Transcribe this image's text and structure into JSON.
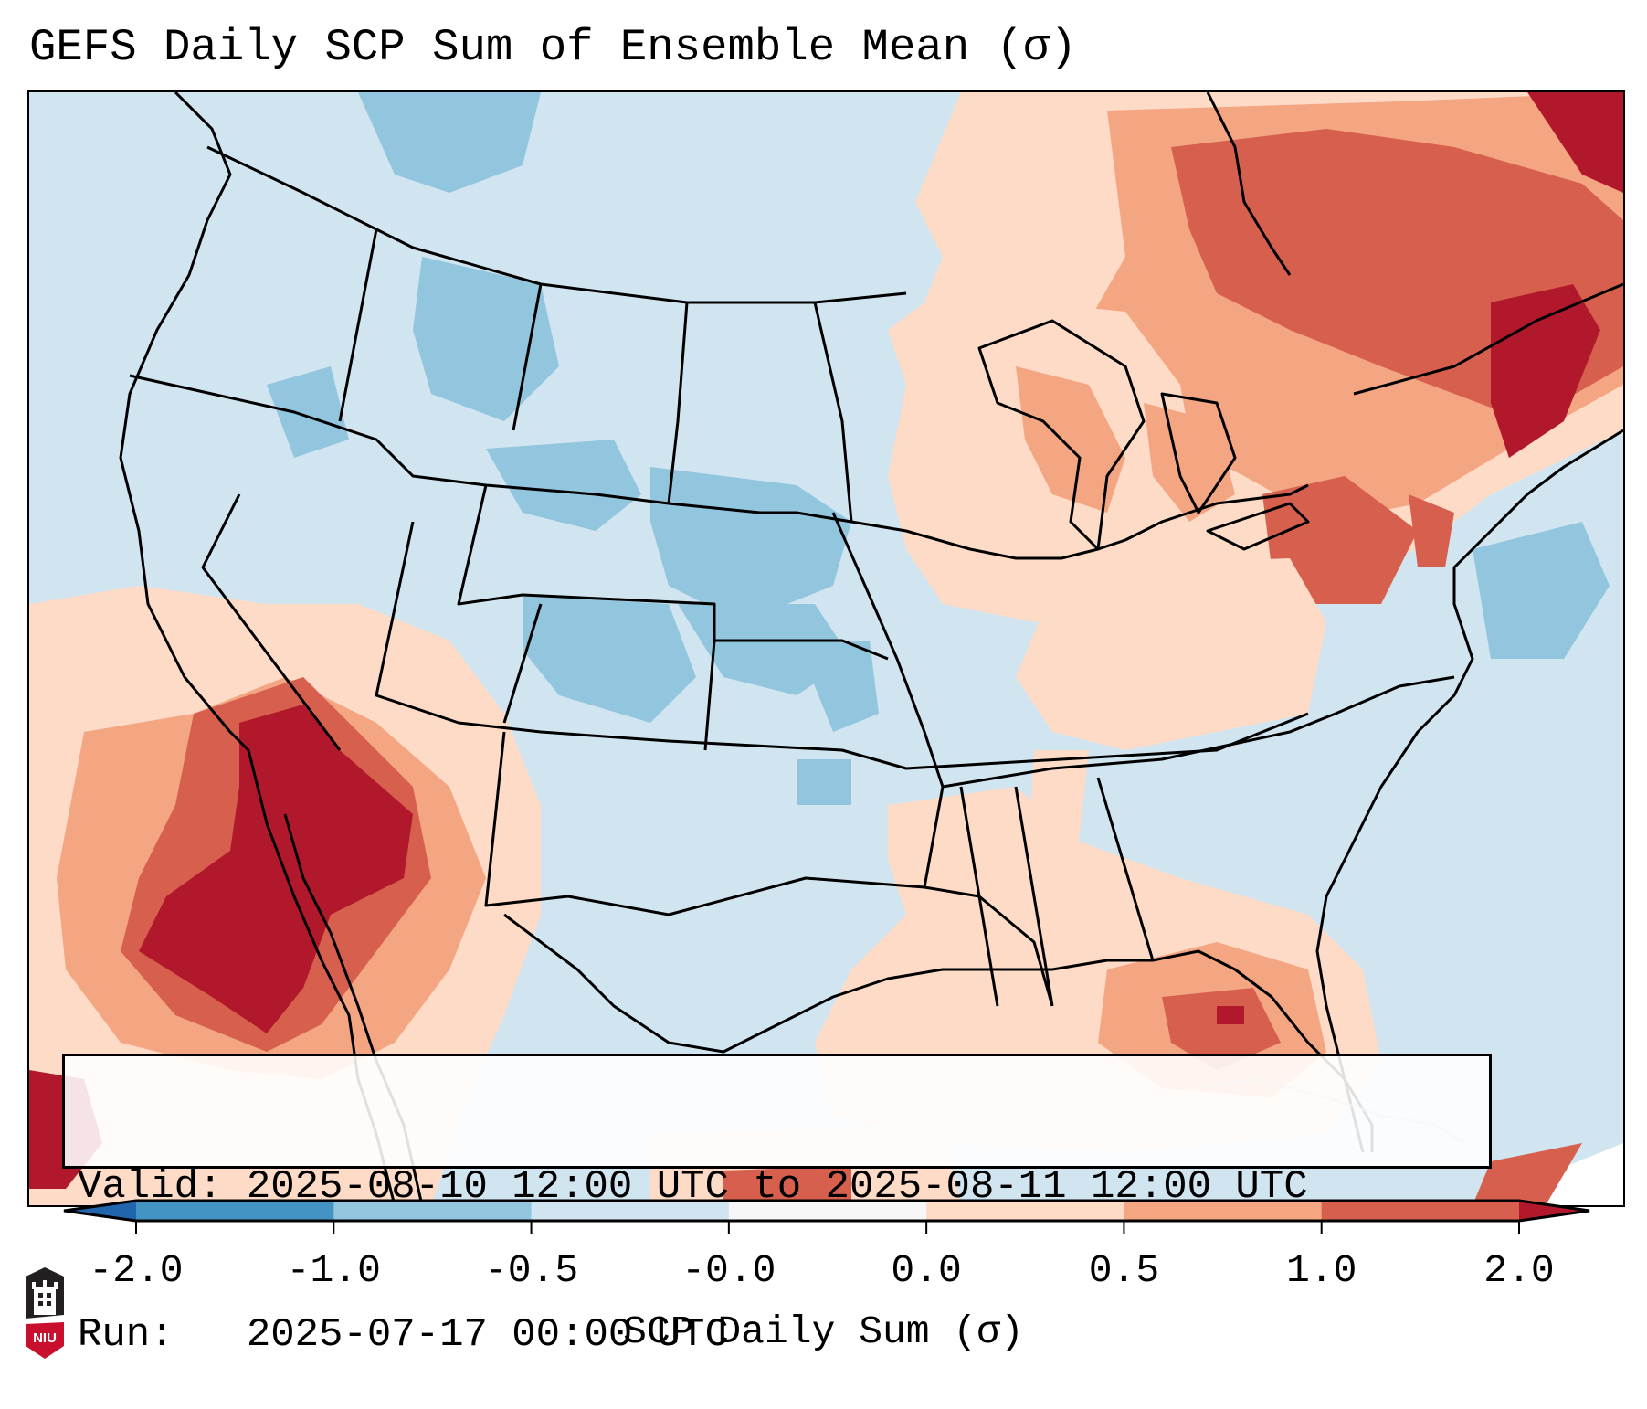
{
  "title": "GEFS Daily SCP Sum of Ensemble Mean (σ)",
  "map": {
    "region": "Contiguous United States",
    "projection_note": "Lambert conformal",
    "field": "SCP daily sum anomaly",
    "features": [
      "state-borders",
      "coastlines",
      "great-lakes"
    ]
  },
  "info_box": {
    "valid_line": "Valid: 2025-08-10 12:00 UTC to 2025-08-11 12:00 UTC",
    "run_line": "Run:   2025-07-17 00:00 UTC"
  },
  "colorbar": {
    "label": "SCP Daily Sum (σ)",
    "ticks": [
      "-2.0",
      "-1.0",
      "-0.5",
      "-0.0",
      "0.0",
      "0.5",
      "1.0",
      "2.0"
    ],
    "bins": [
      {
        "from": -2.0,
        "to": -1.0,
        "color": "#4393c3"
      },
      {
        "from": -1.0,
        "to": -0.5,
        "color": "#92c5de"
      },
      {
        "from": -0.5,
        "to": -0.0,
        "color": "#d1e5f0"
      },
      {
        "from": -0.0,
        "to": 0.0,
        "color": "#f7f7f7"
      },
      {
        "from": 0.0,
        "to": 0.5,
        "color": "#fddbc7"
      },
      {
        "from": 0.5,
        "to": 1.0,
        "color": "#f4a582"
      },
      {
        "from": 1.0,
        "to": 2.0,
        "color": "#d6604d"
      }
    ],
    "under_color": "#2166ac",
    "over_color": "#b2182b",
    "extend": "both"
  },
  "logo": {
    "text": "NIU",
    "colors": {
      "top": "#231f20",
      "bottom": "#c8102e"
    }
  }
}
